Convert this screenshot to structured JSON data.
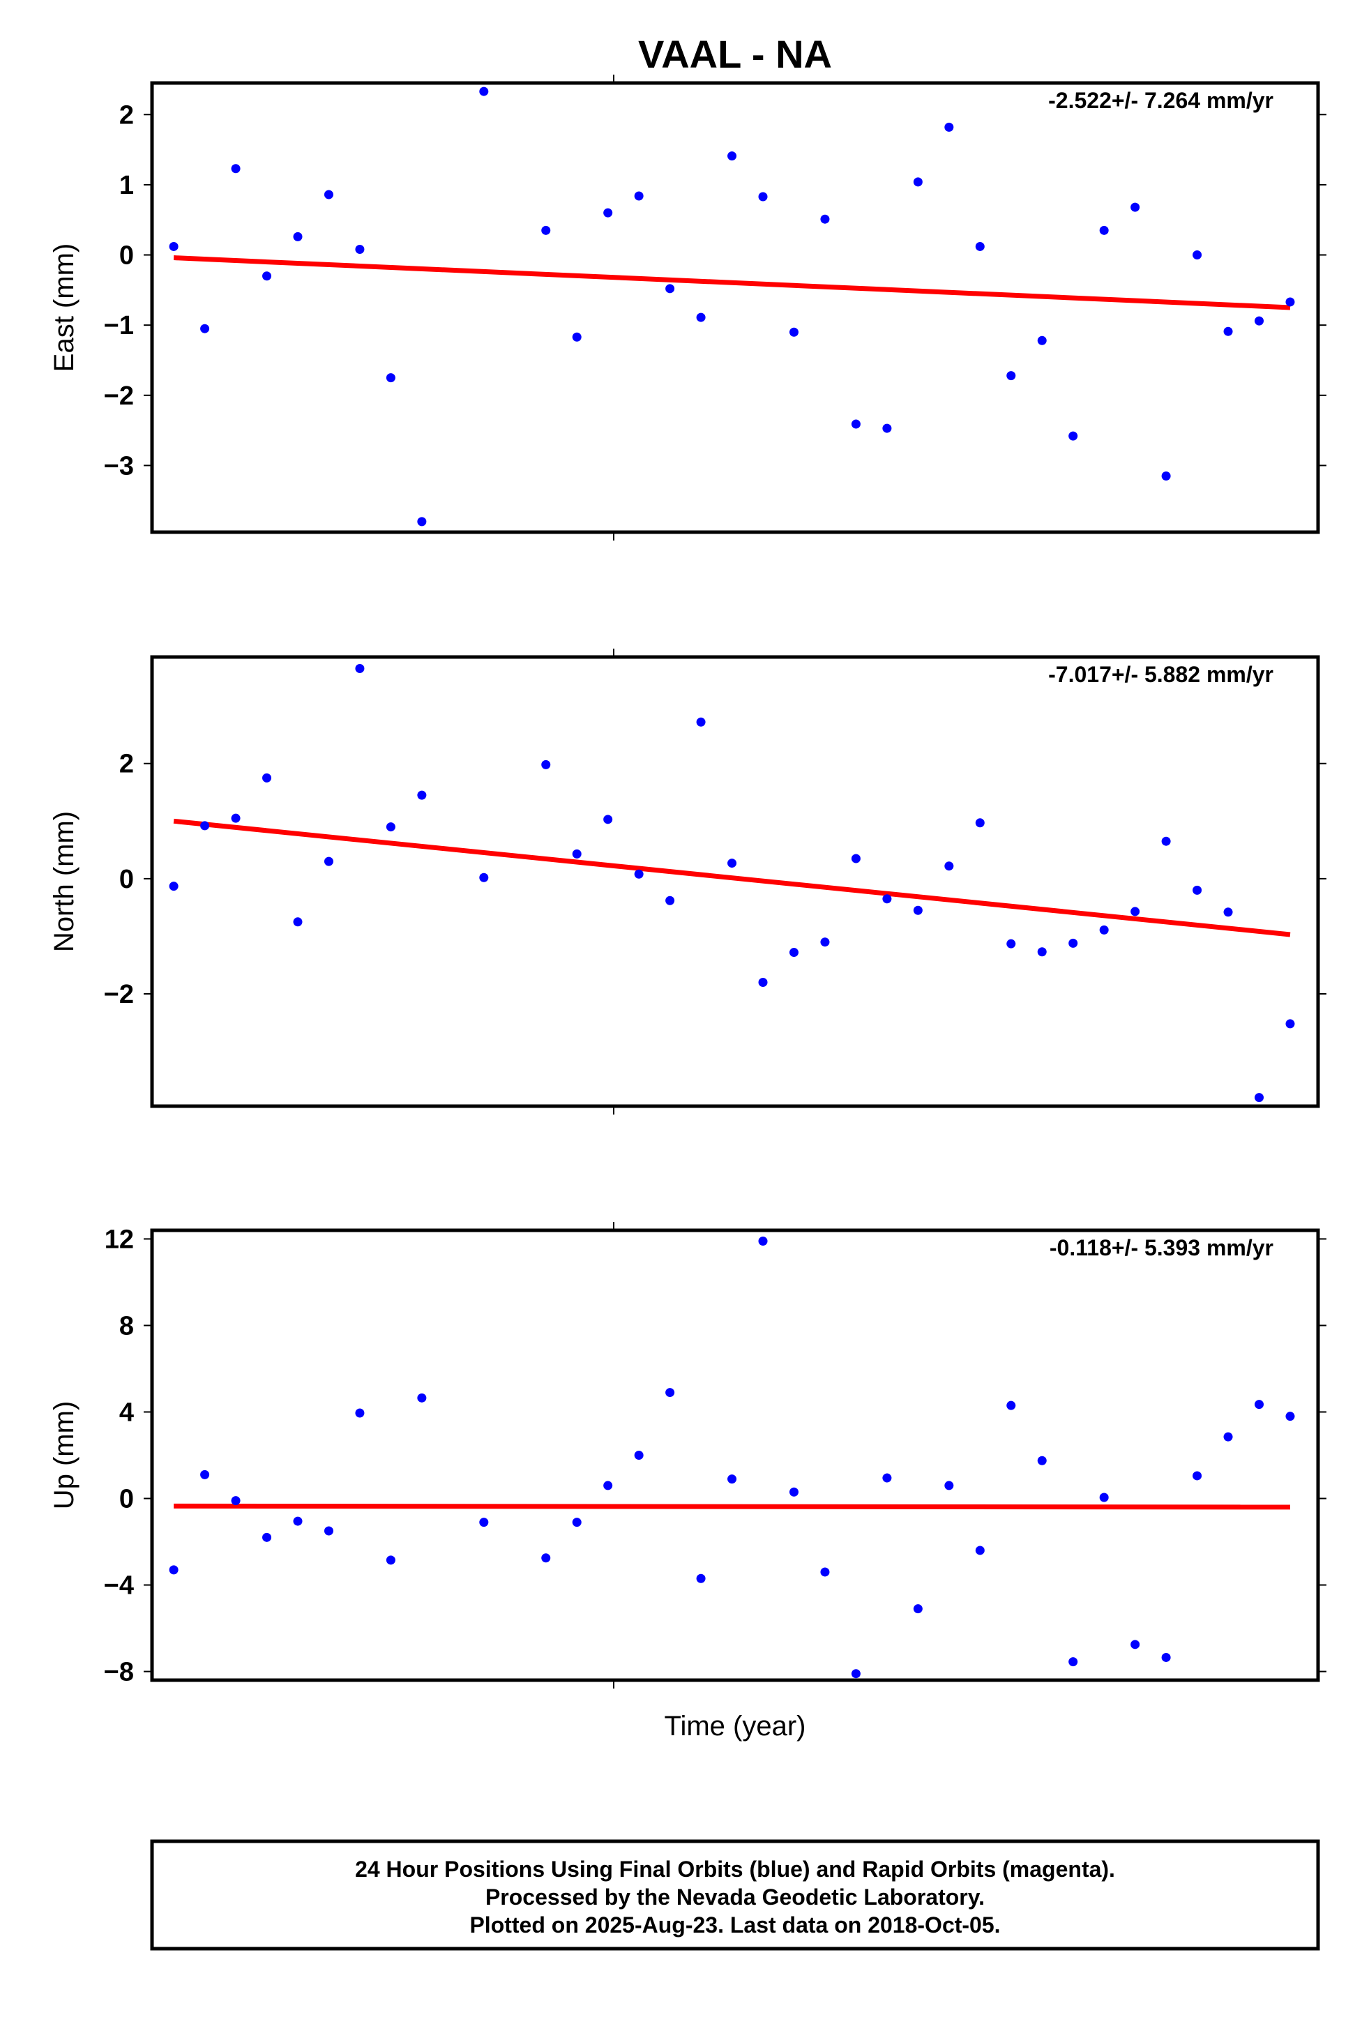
{
  "colors": {
    "points": "#0000ff",
    "trend": "#ff0000",
    "axis": "#000000"
  },
  "chart_data": {
    "type": "scatter",
    "title": "VAAL - NA",
    "xlabel": "Time (year)",
    "x": [
      1,
      2,
      3,
      4,
      5,
      6,
      7,
      8,
      9,
      10,
      11,
      12,
      13,
      14,
      15,
      16,
      17,
      18,
      19,
      20,
      21,
      22,
      23,
      24,
      25,
      26,
      27,
      28,
      29,
      30,
      31,
      32,
      33,
      34,
      35,
      36,
      37,
      38
    ],
    "panels": [
      {
        "name": "east",
        "ylabel": "East (mm)",
        "rate": "-2.522+/- 7.264 mm/yr",
        "ylim": [
          -3.95,
          2.45
        ],
        "yticks": [
          2,
          1,
          0,
          -1,
          -2,
          -3
        ],
        "ytick_labels": [
          "2",
          "1",
          "0",
          "−1",
          "−2",
          "−3"
        ],
        "points": [
          [
            1,
            0.12
          ],
          [
            2,
            -1.05
          ],
          [
            3,
            1.23
          ],
          [
            4,
            -0.3
          ],
          [
            5,
            0.26
          ],
          [
            6,
            0.86
          ],
          [
            7,
            0.08
          ],
          [
            8,
            -1.75
          ],
          [
            9,
            -3.8
          ],
          [
            11,
            2.33
          ],
          [
            13,
            0.35
          ],
          [
            14,
            -1.17
          ],
          [
            15,
            0.6
          ],
          [
            16,
            0.84
          ],
          [
            17,
            -0.48
          ],
          [
            18,
            -0.89
          ],
          [
            19,
            1.41
          ],
          [
            20,
            0.83
          ],
          [
            21,
            -1.1
          ],
          [
            22,
            0.51
          ],
          [
            23,
            -2.41
          ],
          [
            24,
            -2.47
          ],
          [
            25,
            1.04
          ],
          [
            26,
            1.82
          ],
          [
            27,
            0.12
          ],
          [
            28,
            -1.72
          ],
          [
            29,
            -1.22
          ],
          [
            30,
            -2.58
          ],
          [
            31,
            0.35
          ],
          [
            32,
            0.68
          ],
          [
            33,
            -3.15
          ],
          [
            34,
            0.0
          ],
          [
            35,
            -1.09
          ],
          [
            36,
            -0.94
          ],
          [
            37,
            -0.67
          ]
        ],
        "trend": [
          [
            1,
            -0.04
          ],
          [
            37,
            -0.75
          ]
        ]
      },
      {
        "name": "north",
        "ylabel": "North (mm)",
        "rate": "-7.017+/- 5.882 mm/yr",
        "ylim": [
          -3.95,
          3.85
        ],
        "yticks": [
          2,
          0,
          -2
        ],
        "ytick_labels": [
          "2",
          "0",
          "−2"
        ],
        "points": [
          [
            1,
            -0.13
          ],
          [
            2,
            0.92
          ],
          [
            3,
            1.05
          ],
          [
            4,
            1.75
          ],
          [
            5,
            -0.75
          ],
          [
            6,
            0.3
          ],
          [
            7,
            3.65
          ],
          [
            8,
            0.9
          ],
          [
            9,
            1.45
          ],
          [
            11,
            0.02
          ],
          [
            13,
            1.98
          ],
          [
            14,
            0.43
          ],
          [
            15,
            1.03
          ],
          [
            16,
            0.08
          ],
          [
            17,
            -0.38
          ],
          [
            18,
            2.72
          ],
          [
            19,
            0.27
          ],
          [
            20,
            -1.8
          ],
          [
            21,
            -1.28
          ],
          [
            22,
            -1.1
          ],
          [
            23,
            0.35
          ],
          [
            24,
            -0.35
          ],
          [
            25,
            -0.55
          ],
          [
            26,
            0.22
          ],
          [
            27,
            0.97
          ],
          [
            28,
            -1.13
          ],
          [
            29,
            -1.27
          ],
          [
            30,
            -1.12
          ],
          [
            31,
            -0.89
          ],
          [
            32,
            -0.57
          ],
          [
            33,
            0.65
          ],
          [
            34,
            -0.2
          ],
          [
            35,
            -0.58
          ],
          [
            36,
            -3.8
          ],
          [
            37,
            -2.52
          ]
        ],
        "trend": [
          [
            1,
            1.0
          ],
          [
            37,
            -0.97
          ]
        ]
      },
      {
        "name": "up",
        "ylabel": "Up (mm)",
        "rate": "-0.118+/- 5.393 mm/yr",
        "ylim": [
          -8.4,
          12.4
        ],
        "yticks": [
          12,
          8,
          4,
          0,
          -4,
          -8
        ],
        "ytick_labels": [
          "12",
          "8",
          "4",
          "0",
          "−4",
          "−8"
        ],
        "points": [
          [
            1,
            -3.3
          ],
          [
            2,
            1.1
          ],
          [
            3,
            -0.1
          ],
          [
            4,
            -1.8
          ],
          [
            5,
            -1.05
          ],
          [
            6,
            -1.5
          ],
          [
            7,
            3.95
          ],
          [
            8,
            -2.85
          ],
          [
            9,
            4.65
          ],
          [
            11,
            -1.1
          ],
          [
            13,
            -2.75
          ],
          [
            14,
            -1.1
          ],
          [
            15,
            0.6
          ],
          [
            16,
            2.0
          ],
          [
            17,
            4.9
          ],
          [
            18,
            -3.7
          ],
          [
            19,
            0.9
          ],
          [
            20,
            11.9
          ],
          [
            21,
            0.3
          ],
          [
            22,
            -3.4
          ],
          [
            23,
            -8.1
          ],
          [
            24,
            0.95
          ],
          [
            25,
            -5.1
          ],
          [
            26,
            0.6
          ],
          [
            27,
            -2.4
          ],
          [
            28,
            4.3
          ],
          [
            29,
            1.75
          ],
          [
            30,
            -7.55
          ],
          [
            31,
            0.05
          ],
          [
            32,
            -6.75
          ],
          [
            33,
            -7.35
          ],
          [
            34,
            1.05
          ],
          [
            35,
            2.85
          ],
          [
            36,
            4.35
          ],
          [
            37,
            3.8
          ]
        ],
        "trend": [
          [
            1,
            -0.35
          ],
          [
            37,
            -0.4
          ]
        ]
      }
    ]
  },
  "footer": {
    "line1": "24 Hour Positions Using Final Orbits (blue) and Rapid Orbits (magenta).",
    "line2": "Processed by the Nevada Geodetic Laboratory.",
    "line3": "Plotted on 2025-Aug-23. Last data on 2018-Oct-05."
  }
}
